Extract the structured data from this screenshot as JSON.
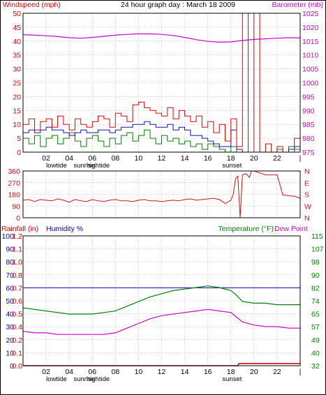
{
  "page_title": "24 hour graph day : March 18 2009",
  "colors": {
    "wind_red": "#e00000",
    "wind_blue": "#1010c0",
    "wind_green": "#008000",
    "barometer": "#cc00cc",
    "direction": "#d01010",
    "humidity": "#0000c8",
    "temperature": "#008000",
    "dewpoint": "#cc00cc",
    "rainfall": "#cc0000",
    "grid": "#9a9a9a",
    "frame": "#000000"
  },
  "x_axis": {
    "ticks": [
      "02",
      "04",
      "06",
      "08",
      "10",
      "12",
      "14",
      "16",
      "18",
      "20",
      "22",
      "|"
    ],
    "events": [
      {
        "label": "lowtide",
        "hour": 2.9
      },
      {
        "label": "sunrise",
        "hour": 5.3
      },
      {
        "label": "hightide",
        "hour": 6.5
      },
      {
        "label": "sunset",
        "hour": 18.1
      }
    ]
  },
  "chart_data": [
    {
      "type": "line",
      "title": "24 hour graph day : March 18 2009",
      "left_label": "Windspeed (mph)",
      "right_label": "Barometer (mb)",
      "xlim": [
        0,
        24
      ],
      "ylim_left": [
        0,
        50
      ],
      "ylim_right": [
        975,
        1025
      ],
      "yticks_left": [
        "0",
        "5",
        "10",
        "15",
        "20",
        "25",
        "30",
        "35",
        "40",
        "45",
        "50"
      ],
      "yticks_right": [
        "975",
        "980",
        "985",
        "990",
        "995",
        "1000",
        "1005",
        "1010",
        "1015",
        "1020",
        "1025"
      ],
      "grid": true,
      "series": [
        {
          "key": "barometer",
          "axis": "right",
          "x": [
            0,
            1,
            2,
            3,
            4,
            5,
            6,
            7,
            8,
            9,
            10,
            11,
            12,
            13,
            14,
            15,
            16,
            17,
            18,
            19,
            20,
            21,
            22,
            23,
            24
          ],
          "values": [
            1017.3,
            1017.1,
            1016.9,
            1016.6,
            1016.2,
            1016.0,
            1016.3,
            1016.7,
            1017.1,
            1017.4,
            1017.6,
            1017.6,
            1017.4,
            1017.0,
            1016.3,
            1015.5,
            1014.9,
            1014.6,
            1014.7,
            1015.2,
            1015.6,
            1015.8,
            1016.0,
            1016.2,
            1016.1
          ]
        },
        {
          "key": "wind_red",
          "axis": "left",
          "x": [
            0,
            0.5,
            1,
            1.5,
            2,
            2.5,
            3,
            3.5,
            4,
            4.5,
            5,
            5.5,
            6,
            6.5,
            7,
            7.5,
            8,
            8.5,
            9,
            9.5,
            10,
            10.5,
            11,
            11.5,
            12,
            12.5,
            13,
            13.5,
            14,
            14.5,
            15,
            15.5,
            16,
            16.5,
            17,
            17.5,
            18,
            18.5,
            19,
            19.5,
            20,
            20.5,
            21,
            21.5,
            22,
            22.5,
            23,
            23.5,
            24
          ],
          "values": [
            10,
            12,
            8,
            11,
            12,
            9,
            13,
            10,
            8,
            12,
            10,
            9,
            11,
            13,
            12,
            9,
            14,
            13,
            11,
            17,
            18,
            16,
            15,
            14,
            13,
            16,
            12,
            15,
            13,
            11,
            13,
            9,
            11,
            7,
            10,
            4,
            12,
            2,
            50,
            0,
            50,
            0,
            3,
            0,
            2,
            0,
            0,
            5,
            3
          ]
        },
        {
          "key": "wind_blue",
          "axis": "left",
          "x": [
            0,
            0.5,
            1,
            1.5,
            2,
            2.5,
            3,
            3.5,
            4,
            4.5,
            5,
            5.5,
            6,
            6.5,
            7,
            7.5,
            8,
            8.5,
            9,
            9.5,
            10,
            10.5,
            11,
            11.5,
            12,
            12.5,
            13,
            13.5,
            14,
            14.5,
            15,
            15.5,
            16,
            16.5,
            17,
            17.5,
            18,
            18.5,
            19,
            19.5,
            20,
            20.5,
            21,
            21.5,
            22,
            22.5,
            23,
            23.5,
            24
          ],
          "values": [
            7,
            8,
            7,
            8,
            9,
            8,
            8,
            7,
            6,
            7,
            8,
            7,
            7,
            8,
            8,
            7,
            8,
            9,
            9,
            10,
            10,
            11,
            10,
            9,
            9,
            10,
            8,
            9,
            8,
            6,
            6,
            5,
            4,
            3,
            2,
            2,
            8,
            1,
            0,
            0,
            0,
            0,
            0,
            0,
            0,
            0,
            1,
            2,
            1
          ]
        },
        {
          "key": "wind_green",
          "axis": "left",
          "x": [
            0,
            0.5,
            1,
            1.5,
            2,
            2.5,
            3,
            3.5,
            4,
            4.5,
            5,
            5.5,
            6,
            6.5,
            7,
            7.5,
            8,
            8.5,
            9,
            9.5,
            10,
            10.5,
            11,
            11.5,
            12,
            12.5,
            13,
            13.5,
            14,
            14.5,
            15,
            15.5,
            16,
            16.5,
            17,
            17.5,
            18,
            18.5,
            19,
            19.5,
            20,
            20.5,
            21,
            21.5,
            22,
            22.5,
            23,
            23.5,
            24
          ],
          "values": [
            5,
            3,
            6,
            2,
            5,
            6,
            3,
            5,
            7,
            4,
            2,
            5,
            6,
            4,
            2,
            5,
            3,
            6,
            7,
            4,
            6,
            8,
            5,
            3,
            6,
            4,
            5,
            3,
            4,
            2,
            3,
            1,
            3,
            2,
            1,
            0,
            2,
            0,
            0,
            0,
            0,
            0,
            0,
            0,
            1,
            0,
            2,
            1,
            0
          ]
        }
      ]
    },
    {
      "type": "line",
      "left_label": "",
      "xlim": [
        0,
        24
      ],
      "ylim": [
        0,
        360
      ],
      "yticks_left": [
        "0",
        "90",
        "180",
        "270",
        "360"
      ],
      "yticks_right": [
        "N",
        "W",
        "S",
        "E",
        "N"
      ],
      "grid": true,
      "series": [
        {
          "key": "direction",
          "axis": "left",
          "x": [
            0,
            0.5,
            1,
            1.5,
            2,
            2.5,
            3,
            3.5,
            4,
            4.5,
            5,
            5.5,
            6,
            6.5,
            7,
            7.5,
            8,
            8.5,
            9,
            9.5,
            10,
            10.5,
            11,
            11.5,
            12,
            12.5,
            13,
            13.5,
            14,
            14.5,
            15,
            15.5,
            16,
            16.5,
            17,
            17.5,
            18,
            18.2,
            18.4,
            18.6,
            18.8,
            19,
            19.3,
            19.6,
            19.8,
            20,
            21,
            22,
            22.5,
            23,
            23.5,
            24
          ],
          "values": [
            135,
            140,
            125,
            140,
            135,
            130,
            145,
            135,
            120,
            140,
            130,
            125,
            140,
            130,
            125,
            135,
            140,
            130,
            130,
            125,
            135,
            140,
            130,
            130,
            125,
            130,
            135,
            130,
            140,
            145,
            135,
            140,
            145,
            150,
            140,
            110,
            135,
            180,
            300,
            320,
            0,
            330,
            340,
            310,
            360,
            360,
            330,
            330,
            175,
            170,
            165,
            150
          ]
        }
      ]
    },
    {
      "type": "line",
      "left_label": "Rainfall (in)",
      "left_label_2": "Humidity %",
      "right_label": "Temperature (°F)",
      "right_label_2": "Dew Point",
      "xlim": [
        0,
        24
      ],
      "ylim_humidity": [
        0,
        100
      ],
      "ylim_rainfall": [
        0,
        1.2
      ],
      "ylim_temperature": [
        32,
        115
      ],
      "yticks_humidity": [
        "0",
        "10",
        "20",
        "30",
        "40",
        "50",
        "60",
        "70",
        "80",
        "90",
        "100"
      ],
      "yticks_rainfall": [
        "0.0",
        "0.1",
        "0.2",
        "0.4",
        "0.5",
        "0.6",
        "0.7",
        "0.8",
        "1.0",
        "1.1",
        "1.2"
      ],
      "yticks_temperature": [
        "32",
        "40",
        "49",
        "57",
        "65",
        "74",
        "82",
        "90",
        "98",
        "107",
        "115"
      ],
      "grid": true,
      "series": [
        {
          "key": "humidity",
          "axis": "humidity",
          "x": [
            0,
            24
          ],
          "values": [
            60,
            60
          ]
        },
        {
          "key": "temperature",
          "axis": "temperature",
          "x": [
            0,
            1,
            2,
            3,
            4,
            5,
            6,
            7,
            8,
            9,
            10,
            11,
            12,
            13,
            14,
            15,
            16,
            17,
            18,
            18.5,
            19,
            20,
            21,
            22,
            23,
            24
          ],
          "values": [
            69,
            68,
            67,
            66,
            65,
            65,
            65,
            66,
            67,
            70,
            73,
            76,
            78,
            80,
            81,
            82,
            83,
            82,
            80,
            77,
            73,
            72,
            72,
            71,
            71,
            71
          ]
        },
        {
          "key": "dewpoint",
          "axis": "temperature",
          "x": [
            0,
            1,
            2,
            3,
            4,
            5,
            6,
            7,
            8,
            9,
            10,
            11,
            12,
            13,
            14,
            15,
            16,
            17,
            18,
            18.5,
            19,
            20,
            21,
            22,
            23,
            24
          ],
          "values": [
            54,
            53,
            53,
            52,
            52,
            52,
            52,
            52,
            53,
            56,
            59,
            62,
            64,
            65,
            66,
            67,
            68,
            67,
            66,
            63,
            60,
            58,
            57,
            57,
            56,
            56
          ]
        },
        {
          "key": "rainfall",
          "axis": "rainfall",
          "x": [
            0,
            18.6,
            18.7,
            24
          ],
          "values": [
            0,
            0,
            0.02,
            0.02
          ]
        }
      ]
    }
  ]
}
